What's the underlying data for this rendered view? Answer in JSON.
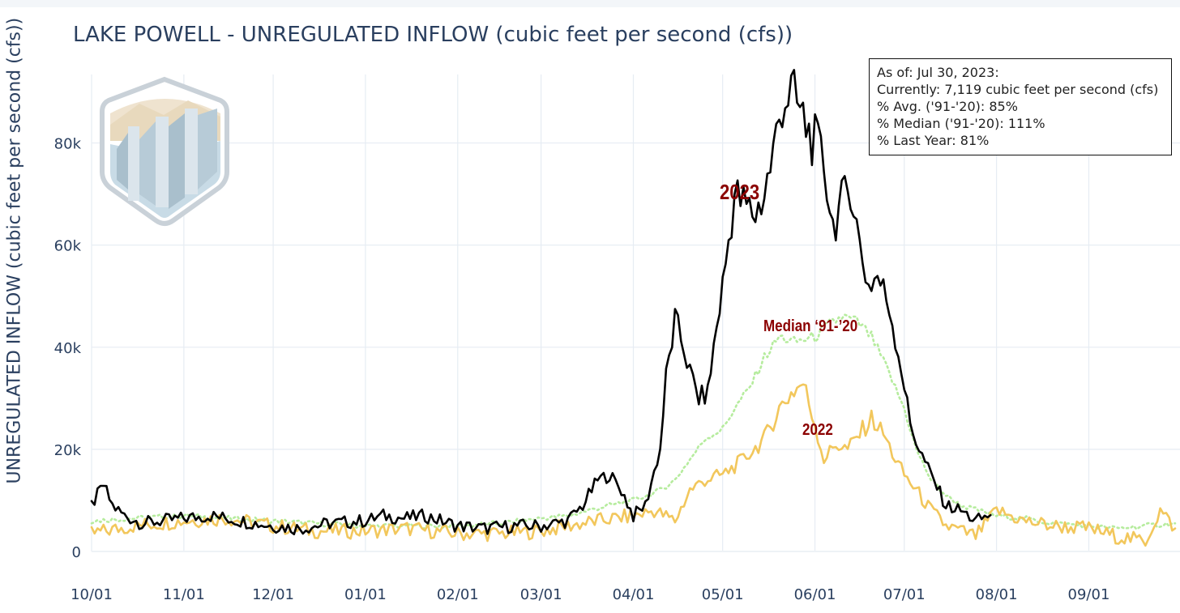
{
  "title": "LAKE POWELL - UNREGULATED INFLOW (cubic feet per second (cfs))",
  "ylabel": "UNREGULATED INFLOW (cubic feet per second (cfs))",
  "infobox": {
    "line1": "As of: Jul 30, 2023:",
    "line2": "Currently: 7,119 cubic feet per second (cfs)",
    "line3": "% Avg. ('91-'20): 85%",
    "line4": "% Median ('91-'20): 111%",
    "line5": "% Last Year: 81%"
  },
  "annotations": {
    "a2023": "2023",
    "median": "Median ‘91-’20",
    "a2022": "2022"
  },
  "colors": {
    "series2023": "#000000",
    "series2022": "#f2c75c",
    "median": "#b6ec9e",
    "grid": "#e6ecf3",
    "text": "#2a3f5f",
    "annotation": "#8b0000"
  },
  "chart_data": {
    "type": "line",
    "title": "LAKE POWELL - UNREGULATED INFLOW (cubic feet per second (cfs))",
    "xlabel": "",
    "ylabel": "UNREGULATED INFLOW (cubic feet per second (cfs))",
    "x_ticks": [
      "10/01",
      "11/01",
      "12/01",
      "01/01",
      "02/01",
      "03/01",
      "04/01",
      "05/01",
      "06/01",
      "07/01",
      "08/01",
      "09/01"
    ],
    "y_ticks": [
      0,
      20000,
      40000,
      60000,
      80000
    ],
    "y_tick_labels": [
      "0",
      "20k",
      "40k",
      "60k",
      "80k"
    ],
    "ylim": [
      0,
      95000
    ],
    "xlim": [
      "10/01",
      "09/30"
    ],
    "grid": true,
    "series": [
      {
        "name": "2023",
        "x": [
          "10/01",
          "10/05",
          "10/08",
          "10/12",
          "10/18",
          "10/25",
          "11/01",
          "11/10",
          "11/20",
          "12/01",
          "12/10",
          "12/20",
          "01/01",
          "01/07",
          "01/14",
          "01/21",
          "02/01",
          "02/10",
          "02/20",
          "03/01",
          "03/10",
          "03/15",
          "03/20",
          "03/24",
          "03/28",
          "04/01",
          "04/05",
          "04/10",
          "04/12",
          "04/15",
          "04/18",
          "04/20",
          "04/23",
          "04/26",
          "04/28",
          "05/01",
          "05/05",
          "05/08",
          "05/12",
          "05/15",
          "05/18",
          "05/21",
          "05/24",
          "05/27",
          "05/30",
          "06/01",
          "06/04",
          "06/07",
          "06/10",
          "06/13",
          "06/16",
          "06/19",
          "06/22",
          "06/26",
          "06/30",
          "07/03",
          "07/06",
          "07/10",
          "07/15",
          "07/20",
          "07/25",
          "07/30"
        ],
        "values": [
          9000,
          13000,
          9000,
          7000,
          5500,
          6000,
          6500,
          7000,
          6000,
          5000,
          4500,
          5500,
          6000,
          7000,
          6500,
          7000,
          5000,
          4500,
          5000,
          5000,
          6000,
          9000,
          14000,
          15000,
          12000,
          7000,
          9000,
          20000,
          34000,
          45000,
          40000,
          35000,
          30000,
          31000,
          40000,
          52000,
          70000,
          68000,
          66000,
          70000,
          78000,
          88000,
          90000,
          86000,
          82000,
          80000,
          76000,
          64000,
          68000,
          72000,
          60000,
          52000,
          54000,
          48000,
          36000,
          25000,
          20000,
          15000,
          9000,
          8000,
          6000,
          7119
        ]
      },
      {
        "name": "2022",
        "x": [
          "10/01",
          "10/15",
          "11/01",
          "11/15",
          "12/01",
          "12/15",
          "01/01",
          "01/15",
          "02/01",
          "02/15",
          "03/01",
          "03/10",
          "03/20",
          "04/01",
          "04/08",
          "04/15",
          "04/20",
          "04/25",
          "05/01",
          "05/08",
          "05/15",
          "05/20",
          "05/24",
          "05/28",
          "06/01",
          "06/04",
          "06/08",
          "06/12",
          "06/16",
          "06/20",
          "06/24",
          "06/28",
          "07/01",
          "07/05",
          "07/10",
          "07/15",
          "07/20",
          "07/25",
          "08/01",
          "08/10",
          "08/20",
          "09/01",
          "09/10",
          "09/20",
          "09/25",
          "09/30"
        ],
        "values": [
          3500,
          5000,
          6000,
          6500,
          5000,
          4000,
          4000,
          4500,
          3500,
          3500,
          4000,
          5000,
          6000,
          7000,
          8000,
          6000,
          12000,
          14000,
          15000,
          18000,
          22000,
          28000,
          31000,
          33000,
          25000,
          18000,
          21000,
          20000,
          23000,
          26000,
          23000,
          18000,
          15000,
          12000,
          8000,
          5000,
          4000,
          3000,
          8000,
          6000,
          5000,
          4500,
          3000,
          2000,
          8000,
          4500
        ]
      },
      {
        "name": "Median '91-'20",
        "x": [
          "10/01",
          "10/15",
          "11/01",
          "11/15",
          "12/01",
          "12/15",
          "01/01",
          "01/15",
          "02/01",
          "02/15",
          "03/01",
          "03/10",
          "03/20",
          "04/01",
          "04/10",
          "04/15",
          "04/20",
          "04/25",
          "05/01",
          "05/05",
          "05/10",
          "05/15",
          "05/20",
          "05/25",
          "06/01",
          "06/05",
          "06/10",
          "06/15",
          "06/20",
          "06/25",
          "07/01",
          "07/05",
          "07/10",
          "07/15",
          "07/20",
          "08/01",
          "08/10",
          "08/20",
          "09/01",
          "09/10",
          "09/20",
          "09/30"
        ],
        "values": [
          6000,
          6500,
          7000,
          6500,
          6000,
          5500,
          5000,
          5000,
          5000,
          5500,
          6500,
          7000,
          8500,
          10000,
          12000,
          14000,
          18000,
          22000,
          24000,
          28000,
          32000,
          38000,
          42000,
          41000,
          42000,
          44000,
          46000,
          45000,
          42000,
          36000,
          28000,
          20000,
          14000,
          11000,
          9000,
          7000,
          6500,
          5500,
          5000,
          4500,
          5000,
          5500
        ]
      }
    ]
  }
}
